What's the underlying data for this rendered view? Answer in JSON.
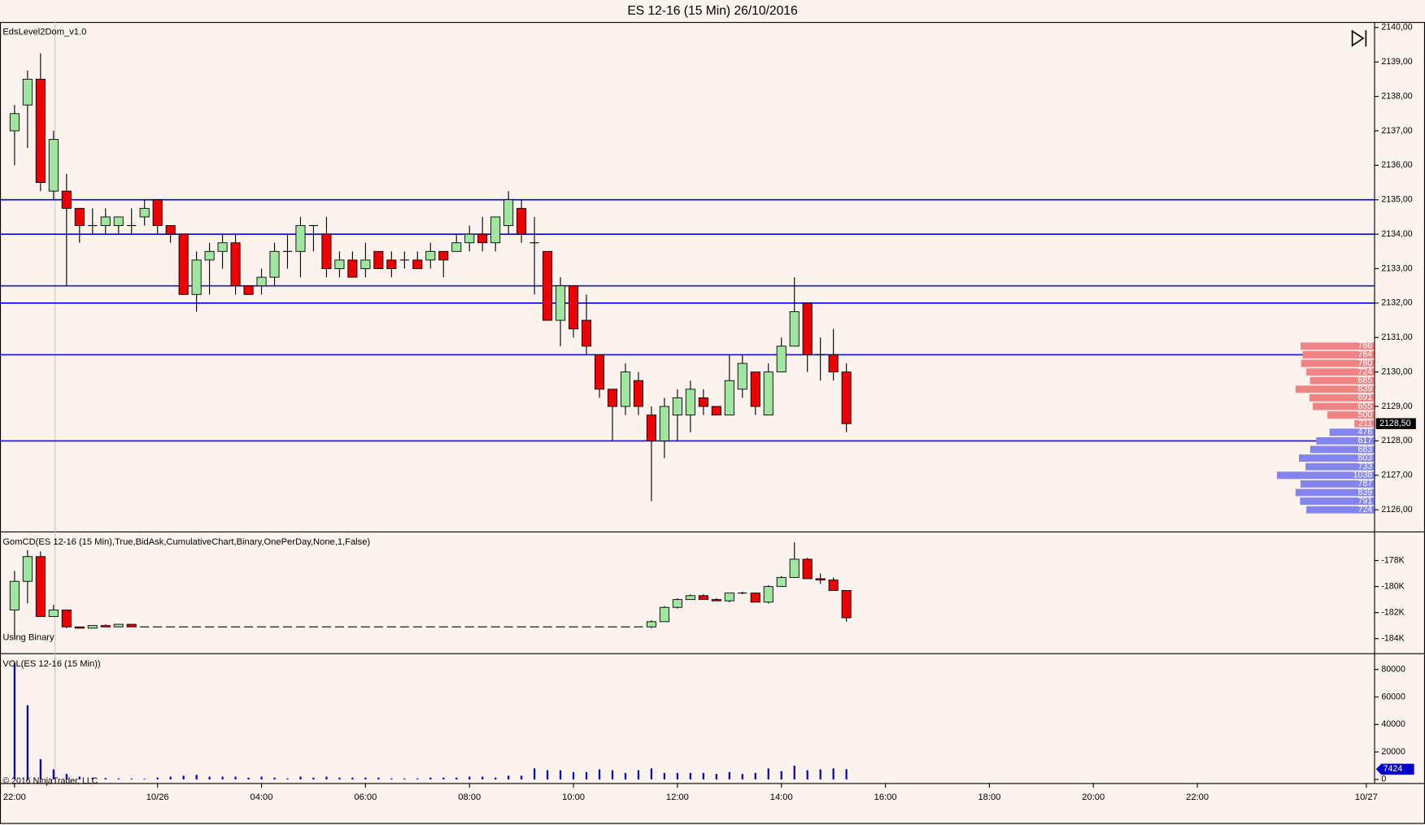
{
  "title": "ES 12-16 (15 Min)  26/10/2016",
  "copyright": "© 2016 NinjaTrader, LLC",
  "chart_data": [
    {
      "type": "candlestick",
      "title": "EdsLevel2Dom_v1.0",
      "up_color": "#a0e6a0",
      "down_color": "#ee0000",
      "wick_color": "#000000",
      "open": [
        2137,
        2137.75,
        2138.5,
        2135.25,
        2135.25,
        2134.75,
        2134.25,
        2134.25,
        2134.25,
        2134.25,
        2134.5,
        2135,
        2134.25,
        2134,
        2132.25,
        2133.25,
        2133.5,
        2133.75,
        2132.5,
        2132.5,
        2132.75,
        2133.5,
        2133.5,
        2134.25,
        2134,
        2133,
        2133.25,
        2133,
        2133.5,
        2133.25,
        2133.25,
        2133.25,
        2133.25,
        2133.5,
        2133.5,
        2133.75,
        2134,
        2133.75,
        2134.25,
        2134.75,
        2133.75,
        2133.5,
        2131.5,
        2132.5,
        2131.5,
        2130.5,
        2129.5,
        2129,
        2129.75,
        2128.75,
        2128,
        2128.75,
        2128.75,
        2129.25,
        2129,
        2128.75,
        2129.5,
        2130,
        2128.75,
        2130,
        2130.75,
        2132,
        2130.5,
        2130.5,
        2130
      ],
      "high": [
        2137.75,
        2138.75,
        2139.25,
        2137,
        2135.75,
        2134.75,
        2134.75,
        2134.75,
        2134.5,
        2134.75,
        2135,
        2135,
        2134.25,
        2134,
        2133.5,
        2133.75,
        2134,
        2134,
        2132.5,
        2133,
        2133.75,
        2134,
        2134.5,
        2134.25,
        2134.5,
        2133.5,
        2133.5,
        2133.75,
        2133.5,
        2133.5,
        2133.5,
        2133.5,
        2133.75,
        2133.5,
        2134,
        2134.25,
        2134.5,
        2134.5,
        2135.25,
        2135,
        2134.5,
        2133.5,
        2132.75,
        2132.5,
        2132.25,
        2130.5,
        2129.5,
        2130.25,
        2130,
        2129,
        2129.25,
        2129.5,
        2129.75,
        2129.5,
        2129,
        2130.5,
        2130.5,
        2130,
        2130.25,
        2131,
        2132.75,
        2132,
        2131,
        2131.25,
        2130.25
      ],
      "low": [
        2136,
        2136.5,
        2135.25,
        2135,
        2132.5,
        2133.75,
        2134,
        2134,
        2134,
        2134,
        2134.25,
        2134,
        2133.75,
        2132.25,
        2131.75,
        2132.25,
        2133,
        2132.25,
        2132.25,
        2132.25,
        2132.5,
        2133,
        2132.75,
        2133.5,
        2132.75,
        2132.75,
        2132.75,
        2132.75,
        2133,
        2132.75,
        2133,
        2133,
        2133,
        2132.75,
        2133.5,
        2133.5,
        2133.5,
        2133.5,
        2134,
        2133.75,
        2132.25,
        2131.5,
        2130.75,
        2131,
        2130.5,
        2129.25,
        2128,
        2128.75,
        2128.75,
        2126.25,
        2127.5,
        2128,
        2128.25,
        2128.75,
        2128.75,
        2128.75,
        2129.25,
        2128.75,
        2128.75,
        2130,
        2130.75,
        2130,
        2129.75,
        2129.75,
        2128.25
      ],
      "close": [
        2137.5,
        2138.5,
        2135.5,
        2136.75,
        2134.75,
        2134.25,
        2134.25,
        2134.5,
        2134.5,
        2134.25,
        2134.75,
        2134.25,
        2134,
        2132.25,
        2133.25,
        2133.5,
        2133.75,
        2132.5,
        2132.25,
        2132.75,
        2133.5,
        2133.5,
        2134.25,
        2134.25,
        2133,
        2133.25,
        2132.75,
        2133.25,
        2133,
        2133,
        2133.25,
        2133,
        2133.5,
        2133.25,
        2133.75,
        2134,
        2133.75,
        2134.5,
        2135,
        2134,
        2133.75,
        2131.5,
        2132.5,
        2131.25,
        2130.75,
        2129.5,
        2129,
        2130,
        2129,
        2128,
        2129,
        2129.25,
        2129.5,
        2129,
        2128.75,
        2129.75,
        2130.25,
        2129,
        2130,
        2130.75,
        2131.75,
        2130.5,
        2130.5,
        2130,
        2128.5
      ],
      "ylim": [
        2125.37,
        2140.16
      ],
      "yticks": [
        {
          "value": 2126,
          "label": "2126,00"
        },
        {
          "value": 2127,
          "label": "2127,00"
        },
        {
          "value": 2128,
          "label": "2128,00"
        },
        {
          "value": 2129,
          "label": "2129,00"
        },
        {
          "value": 2130,
          "label": "2130,00"
        },
        {
          "value": 2131,
          "label": "2131,00"
        },
        {
          "value": 2132,
          "label": "2132,00"
        },
        {
          "value": 2133,
          "label": "2133,00"
        },
        {
          "value": 2134,
          "label": "2134,00"
        },
        {
          "value": 2135,
          "label": "2135,00"
        },
        {
          "value": 2136,
          "label": "2136,00"
        },
        {
          "value": 2137,
          "label": "2137,00"
        },
        {
          "value": 2138,
          "label": "2138,00"
        },
        {
          "value": 2139,
          "label": "2139,00"
        },
        {
          "value": 2140,
          "label": "2140,00"
        }
      ],
      "hlines": {
        "color": "#1414d2",
        "values": [
          2135,
          2134,
          2132.5,
          2132,
          2130.5,
          2128
        ]
      },
      "last_price": {
        "value": 2128.5,
        "label": "2128,50"
      },
      "dom": {
        "ask": {
          "color": "#f08484",
          "prices": [
            2130.75,
            2130.5,
            2130.25,
            2130,
            2129.75,
            2129.5,
            2129.25,
            2129,
            2128.75,
            2128.5
          ],
          "values": [
            786,
            764,
            780,
            724,
            685,
            839,
            691,
            655,
            500,
            211
          ]
        },
        "bid": {
          "color": "#8484f0",
          "prices": [
            2128.25,
            2128,
            2127.75,
            2127.5,
            2127.25,
            2127,
            2126.75,
            2126.5,
            2126.25,
            2126
          ],
          "values": [
            476,
            617,
            683,
            803,
            733,
            1038,
            787,
            839,
            791,
            724
          ]
        }
      }
    },
    {
      "type": "candlestick",
      "title": "GomCD(ES 12-16 (15 Min),True,BidAsk,CumulativeChart,Binary,OnePerDay,None,1,False)",
      "subtitle": "Using Binary",
      "up_color": "#a0e6a0",
      "down_color": "#ee0000",
      "wick_color": "#000000",
      "open": [
        -181800,
        -179600,
        -177700,
        -182300,
        -181800,
        -183100,
        -183200,
        -183000,
        -183100,
        -182900,
        -183100,
        -183100,
        -183100,
        -183100,
        -183100,
        -183100,
        -183100,
        -183100,
        -183100,
        -183100,
        -183100,
        -183100,
        -183100,
        -183100,
        -183100,
        -183100,
        -183100,
        -183100,
        -183100,
        -183100,
        -183100,
        -183100,
        -183100,
        -183100,
        -183100,
        -183100,
        -183100,
        -183100,
        -183100,
        -183100,
        -183100,
        -183100,
        -183100,
        -183100,
        -183100,
        -183100,
        -183100,
        -183100,
        -183100,
        -183100,
        -182700,
        -181600,
        -181000,
        -180700,
        -181000,
        -181100,
        -180500,
        -180500,
        -181200,
        -180000,
        -179300,
        -177900,
        -179400,
        -179500,
        -180300
      ],
      "high": [
        -178800,
        -177200,
        -177300,
        -181400,
        -181800,
        -183100,
        -183000,
        -182900,
        -182900,
        -182900,
        -183100,
        -183100,
        -183100,
        -183100,
        -183100,
        -183100,
        -183100,
        -183100,
        -183100,
        -183100,
        -183100,
        -183100,
        -183100,
        -183100,
        -183100,
        -183100,
        -183100,
        -183100,
        -183100,
        -183100,
        -183100,
        -183100,
        -183100,
        -183100,
        -183100,
        -183100,
        -183100,
        -183100,
        -183100,
        -183100,
        -183100,
        -183100,
        -183100,
        -183100,
        -183100,
        -183100,
        -183100,
        -183100,
        -183100,
        -182600,
        -181500,
        -180900,
        -180600,
        -180600,
        -180900,
        -180500,
        -180400,
        -180500,
        -179900,
        -179200,
        -176600,
        -177800,
        -179000,
        -179300,
        -180300
      ],
      "low": [
        -184000,
        -181300,
        -182300,
        -182300,
        -183200,
        -183200,
        -183200,
        -183100,
        -183100,
        -183100,
        -183100,
        -183100,
        -183100,
        -183100,
        -183100,
        -183100,
        -183100,
        -183100,
        -183100,
        -183100,
        -183100,
        -183100,
        -183100,
        -183100,
        -183100,
        -183100,
        -183100,
        -183100,
        -183100,
        -183100,
        -183100,
        -183100,
        -183100,
        -183100,
        -183100,
        -183100,
        -183100,
        -183100,
        -183100,
        -183100,
        -183100,
        -183100,
        -183100,
        -183100,
        -183100,
        -183100,
        -183100,
        -183100,
        -183100,
        -183200,
        -182700,
        -181700,
        -181000,
        -181000,
        -181100,
        -181200,
        -180600,
        -181200,
        -181300,
        -180000,
        -179300,
        -179400,
        -179800,
        -180300,
        -182700
      ],
      "close": [
        -179600,
        -177700,
        -182300,
        -181800,
        -183100,
        -183200,
        -183000,
        -183100,
        -182900,
        -183100,
        -183100,
        -183100,
        -183100,
        -183100,
        -183100,
        -183100,
        -183100,
        -183100,
        -183100,
        -183100,
        -183100,
        -183100,
        -183100,
        -183100,
        -183100,
        -183100,
        -183100,
        -183100,
        -183100,
        -183100,
        -183100,
        -183100,
        -183100,
        -183100,
        -183100,
        -183100,
        -183100,
        -183100,
        -183100,
        -183100,
        -183100,
        -183100,
        -183100,
        -183100,
        -183100,
        -183100,
        -183100,
        -183100,
        -183100,
        -182700,
        -181600,
        -181000,
        -180700,
        -181000,
        -181100,
        -180500,
        -180500,
        -181200,
        -180000,
        -179300,
        -177900,
        -179400,
        -179500,
        -180300,
        -182400
      ],
      "ylim": [
        -185120,
        -175840
      ],
      "yticks": [
        {
          "value": -178000,
          "label": "-178K"
        },
        {
          "value": -180000,
          "label": "-180K"
        },
        {
          "value": -182000,
          "label": "-182K"
        },
        {
          "value": -184000,
          "label": "-184K"
        }
      ]
    },
    {
      "type": "bar",
      "title": "VOL(ES 12-16 (15 Min))",
      "color": "#0000c8",
      "values": [
        84700,
        54000,
        14700,
        7300,
        4000,
        2000,
        1300,
        1000,
        700,
        600,
        500,
        1300,
        2000,
        2700,
        3300,
        2000,
        2000,
        2000,
        1300,
        2000,
        1300,
        700,
        2000,
        1300,
        2000,
        1300,
        1300,
        1300,
        1300,
        700,
        700,
        700,
        1300,
        1300,
        1300,
        2000,
        2000,
        1300,
        2700,
        2700,
        8000,
        6700,
        6700,
        5300,
        5300,
        7300,
        6700,
        4700,
        6700,
        8000,
        4700,
        4700,
        4700,
        4700,
        4000,
        5300,
        4000,
        4700,
        8000,
        6000,
        10000,
        6700,
        7300,
        8000,
        7424
      ],
      "ylim": [
        -2645,
        91240
      ],
      "yticks": [
        0,
        20000,
        40000,
        60000,
        80000
      ],
      "xlim": [
        -1.12,
        104.6
      ],
      "xticks": [
        {
          "value": 0,
          "label": "22:00"
        },
        {
          "value": 11,
          "label": "10/26"
        },
        {
          "value": 19,
          "label": "04:00"
        },
        {
          "value": 27,
          "label": "06:00"
        },
        {
          "value": 35,
          "label": "08:00"
        },
        {
          "value": 43,
          "label": "10:00"
        },
        {
          "value": 51,
          "label": "12:00"
        },
        {
          "value": 59,
          "label": "14:00"
        },
        {
          "value": 67,
          "label": "16:00"
        },
        {
          "value": 75,
          "label": "18:00"
        },
        {
          "value": 83,
          "label": "20:00"
        },
        {
          "value": 91,
          "label": "22:00"
        },
        {
          "value": 104,
          "label": "10/27"
        }
      ]
    }
  ]
}
